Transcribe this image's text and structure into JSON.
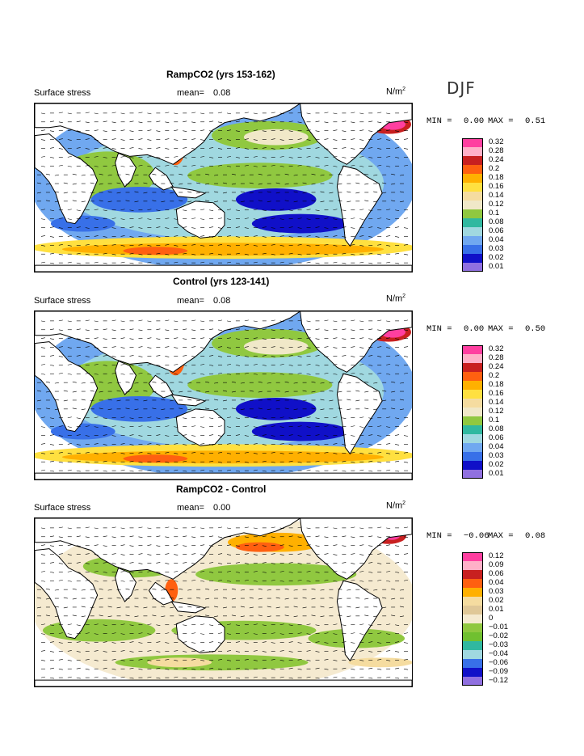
{
  "season": "DJF",
  "panels": [
    {
      "title": "RampCO2 (yrs 153-162)",
      "variable": "Surface stress",
      "mean_label": "mean=",
      "mean_value": "0.08",
      "units": "N/m",
      "units_exp": "2",
      "min_label": "MIN =",
      "min_value": "0.00",
      "max_label": "MAX =",
      "max_value": "0.51",
      "legend": [
        "0.32",
        "0.28",
        "0.24",
        "0.2",
        "0.18",
        "0.16",
        "0.14",
        "0.12",
        "0.1",
        "0.08",
        "0.06",
        "0.04",
        "0.03",
        "0.02",
        "0.01"
      ],
      "legend_colors": [
        "#ff3fa0",
        "#ffb0c8",
        "#c82020",
        "#ff6010",
        "#ffb000",
        "#ffe040",
        "#f5dca0",
        "#f0e8c8",
        "#90c840",
        "#30b8a0",
        "#a0d8e0",
        "#70a8f0",
        "#3870e8",
        "#1010c8",
        "#9070e0"
      ]
    },
    {
      "title": "Control (yrs 123-141)",
      "variable": "Surface stress",
      "mean_label": "mean=",
      "mean_value": "0.08",
      "units": "N/m",
      "units_exp": "2",
      "min_label": "MIN =",
      "min_value": "0.00",
      "max_label": "MAX =",
      "max_value": "0.50",
      "legend": [
        "0.32",
        "0.28",
        "0.24",
        "0.2",
        "0.18",
        "0.16",
        "0.14",
        "0.12",
        "0.1",
        "0.08",
        "0.06",
        "0.04",
        "0.03",
        "0.02",
        "0.01"
      ],
      "legend_colors": [
        "#ff3fa0",
        "#ffb0c8",
        "#c82020",
        "#ff6010",
        "#ffb000",
        "#ffe040",
        "#f5dca0",
        "#f0e8c8",
        "#90c840",
        "#30b8a0",
        "#a0d8e0",
        "#70a8f0",
        "#3870e8",
        "#1010c8",
        "#9070e0"
      ]
    },
    {
      "title": "RampCO2 - Control",
      "variable": "Surface stress",
      "mean_label": "mean=",
      "mean_value": "0.00",
      "units": "N/m",
      "units_exp": "2",
      "min_label": "MIN =",
      "min_value": "−0.06",
      "max_label": "MAX =",
      "max_value": "0.08",
      "legend": [
        "0.12",
        "0.09",
        "0.06",
        "0.04",
        "0.03",
        "0.02",
        "0.01",
        "0",
        "−0.01",
        "−0.02",
        "−0.03",
        "−0.04",
        "−0.06",
        "−0.09",
        "−0.12"
      ],
      "legend_colors": [
        "#ff3fa0",
        "#ffb0c8",
        "#c82020",
        "#ff6010",
        "#ffb000",
        "#f5dca0",
        "#e0c898",
        "#f5ead0",
        "#90c840",
        "#70c030",
        "#30b8a0",
        "#a0d8e0",
        "#3870e8",
        "#1010c8",
        "#9070e0"
      ]
    }
  ]
}
